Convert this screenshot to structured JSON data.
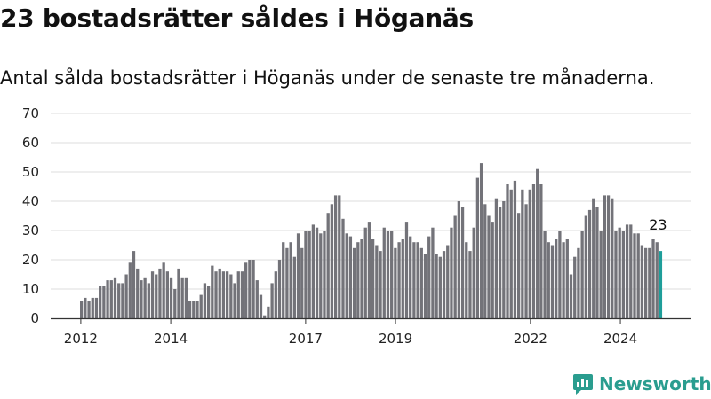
{
  "title": "23 bostadsrätter såldes i Höganäs",
  "subtitle": "Antal sålda bostadsrätter i Höganäs under de senaste tre månaderna.",
  "logo_text": "Newsworthy",
  "colors": {
    "bar": "#737379",
    "highlight": "#1e9e9a",
    "brand": "#2a9d8f",
    "grid": "#dddddd"
  },
  "chart_data": {
    "type": "bar",
    "title": "23 bostadsrätter såldes i Höganäs",
    "subtitle": "Antal sålda bostadsrätter i Höganäs under de senaste tre månaderna.",
    "xlabel": "",
    "ylabel": "",
    "ylim": [
      0,
      70
    ],
    "yticks": [
      0,
      10,
      20,
      30,
      40,
      50,
      60,
      70
    ],
    "xrange": [
      2011.33,
      2025.58
    ],
    "xticks": [
      {
        "value": 2012,
        "label": "2012"
      },
      {
        "value": 2014,
        "label": "2014"
      },
      {
        "value": 2017,
        "label": "2017"
      },
      {
        "value": 2019,
        "label": "2019"
      },
      {
        "value": 2022,
        "label": "2022"
      },
      {
        "value": 2024,
        "label": "2024"
      }
    ],
    "start_label": "2011-12",
    "values": [
      6,
      7,
      6,
      7,
      7,
      11,
      11,
      13,
      13,
      14,
      12,
      12,
      15,
      19,
      23,
      17,
      13,
      14,
      12,
      16,
      15,
      17,
      19,
      16,
      14,
      10,
      17,
      14,
      14,
      6,
      6,
      6,
      8,
      12,
      11,
      18,
      16,
      17,
      16,
      16,
      15,
      12,
      16,
      16,
      19,
      20,
      20,
      13,
      8,
      1,
      4,
      12,
      16,
      20,
      26,
      24,
      26,
      21,
      29,
      24,
      30,
      30,
      32,
      31,
      29,
      30,
      36,
      39,
      42,
      42,
      34,
      29,
      28,
      24,
      26,
      27,
      31,
      33,
      27,
      25,
      23,
      31,
      30,
      30,
      24,
      26,
      27,
      33,
      28,
      26,
      26,
      24,
      22,
      28,
      31,
      22,
      21,
      23,
      25,
      31,
      35,
      40,
      38,
      26,
      23,
      31,
      48,
      53,
      39,
      35,
      33,
      41,
      38,
      40,
      46,
      44,
      47,
      36,
      44,
      39,
      44,
      46,
      51,
      46,
      30,
      26,
      25,
      27,
      30,
      26,
      27,
      15,
      21,
      24,
      30,
      35,
      37,
      41,
      38,
      30,
      42,
      42,
      41,
      30,
      31,
      30,
      32,
      32,
      29,
      29,
      25,
      24,
      24,
      27,
      26,
      23
    ],
    "highlight_last": true,
    "annotation": "23",
    "grid": true,
    "legend": "none"
  }
}
